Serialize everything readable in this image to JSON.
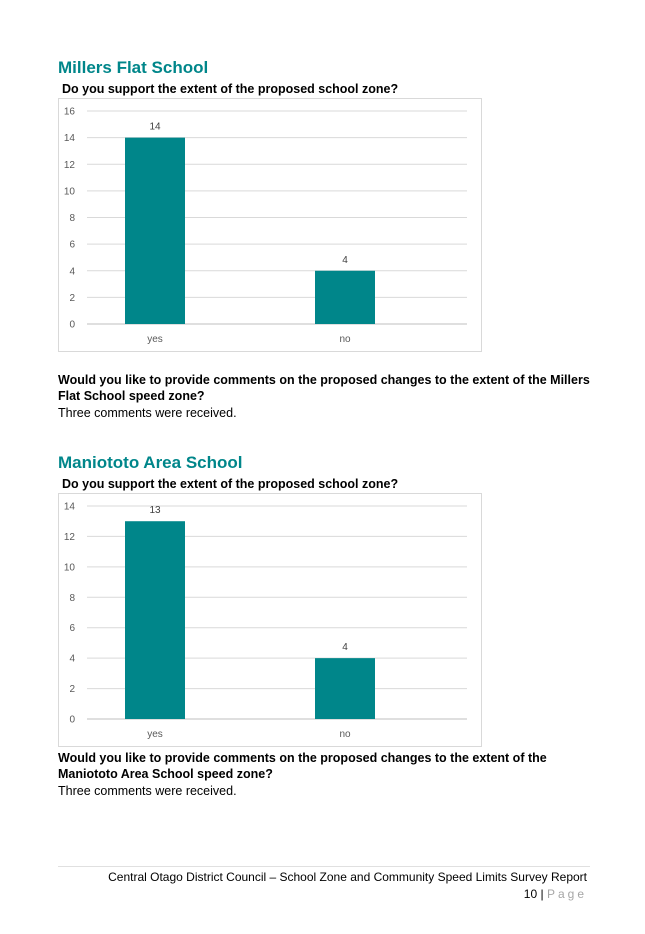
{
  "sections": [
    {
      "heading": "Millers Flat School",
      "question": "Do you support the extent of the proposed school zone?",
      "comments_question": "Would you like to provide comments on the proposed changes to the extent of the Millers Flat School speed zone?",
      "comments_answer": "Three comments were received."
    },
    {
      "heading": "Maniototo Area School",
      "question": "Do you support the extent of the proposed school zone?",
      "comments_question": "Would you like to provide comments on the proposed changes to the extent of the Maniototo Area School speed zone?",
      "comments_answer": "Three comments were received."
    }
  ],
  "chart_data": [
    {
      "type": "bar",
      "categories": [
        "yes",
        "no"
      ],
      "values": [
        14,
        4
      ],
      "ylim": [
        0,
        16
      ],
      "yticks": [
        0,
        2,
        4,
        6,
        8,
        10,
        12,
        14,
        16
      ],
      "grid": true,
      "bar_color": "#00868a"
    },
    {
      "type": "bar",
      "categories": [
        "yes",
        "no"
      ],
      "values": [
        13,
        4
      ],
      "ylim": [
        0,
        14
      ],
      "yticks": [
        0,
        2,
        4,
        6,
        8,
        10,
        12,
        14
      ],
      "grid": true,
      "bar_color": "#00868a"
    }
  ],
  "footer": {
    "text": "Central Otago District Council – School Zone and Community Speed Limits Survey Report",
    "page_number": "10",
    "separator": "|",
    "page_word": "Page"
  }
}
